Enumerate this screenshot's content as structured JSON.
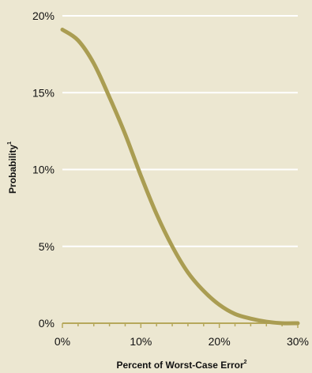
{
  "colors": {
    "background": "#ece7d1",
    "grid": "#ffffff",
    "axis": "#b6a85b",
    "line": "#aa9d52",
    "text": "#111111"
  },
  "chart_data": {
    "type": "line",
    "title": "",
    "xlabel": "Percent of Worst-Case Error",
    "xlabel_sup": "2",
    "ylabel": "Probability",
    "ylabel_sup": "1",
    "xlim": [
      0,
      30
    ],
    "ylim": [
      0,
      20
    ],
    "x_ticks": [
      0,
      10,
      20,
      30
    ],
    "x_tick_labels": [
      "0%",
      "10%",
      "20%",
      "30%"
    ],
    "y_ticks": [
      0,
      5,
      10,
      15,
      20
    ],
    "y_tick_labels": [
      "0%",
      "5%",
      "10%",
      "15%",
      "20%"
    ],
    "grid": true,
    "minor_x_ticks_per_major": 5,
    "series": [
      {
        "x": [
          0,
          2,
          4,
          6,
          8,
          10,
          12,
          14,
          16,
          18,
          20,
          22,
          24,
          26,
          28,
          30
        ],
        "y": [
          19.1,
          18.4,
          16.9,
          14.7,
          12.3,
          9.6,
          7.1,
          5.0,
          3.3,
          2.1,
          1.2,
          0.6,
          0.3,
          0.1,
          0.0,
          0.0
        ]
      }
    ]
  }
}
